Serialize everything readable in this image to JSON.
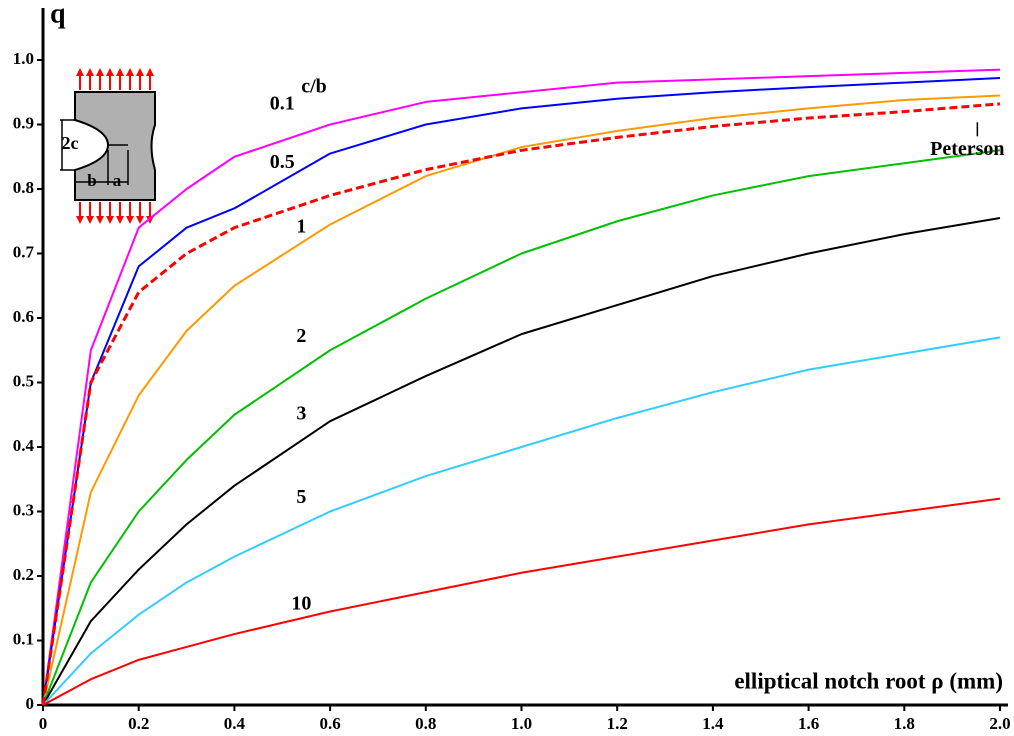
{
  "chart_data": {
    "type": "line",
    "y_label": "q",
    "x_label": "elliptical notch root ρ (mm)",
    "legend_title": "c/b",
    "inset_labels": [
      "2c",
      "b",
      "a"
    ],
    "x": [
      0,
      0.1,
      0.2,
      0.3,
      0.4,
      0.6,
      0.8,
      1.0,
      1.2,
      1.4,
      1.6,
      1.8,
      2.0
    ],
    "series": [
      {
        "name": "0.1",
        "color": "#ff00ff",
        "values": [
          0,
          0.55,
          0.74,
          0.8,
          0.85,
          0.9,
          0.935,
          0.95,
          0.965,
          0.97,
          0.975,
          0.98,
          0.985
        ]
      },
      {
        "name": "0.5",
        "color": "#0000ff",
        "values": [
          0,
          0.5,
          0.68,
          0.74,
          0.77,
          0.855,
          0.9,
          0.925,
          0.94,
          0.95,
          0.958,
          0.965,
          0.972
        ]
      },
      {
        "name": "1",
        "color": "#ff9900",
        "values": [
          0,
          0.33,
          0.48,
          0.58,
          0.65,
          0.745,
          0.82,
          0.865,
          0.89,
          0.91,
          0.925,
          0.938,
          0.945
        ]
      },
      {
        "name": "2",
        "color": "#00c000",
        "values": [
          0,
          0.19,
          0.3,
          0.38,
          0.45,
          0.55,
          0.63,
          0.7,
          0.75,
          0.79,
          0.82,
          0.84,
          0.86
        ]
      },
      {
        "name": "3",
        "color": "#000000",
        "values": [
          0,
          0.13,
          0.21,
          0.28,
          0.34,
          0.44,
          0.51,
          0.575,
          0.62,
          0.665,
          0.7,
          0.73,
          0.755
        ]
      },
      {
        "name": "5",
        "color": "#33ccff",
        "values": [
          0,
          0.08,
          0.14,
          0.19,
          0.23,
          0.3,
          0.355,
          0.4,
          0.445,
          0.485,
          0.52,
          0.545,
          0.57
        ]
      },
      {
        "name": "10",
        "color": "#ff0000",
        "values": [
          0,
          0.04,
          0.07,
          0.09,
          0.11,
          0.145,
          0.175,
          0.205,
          0.23,
          0.255,
          0.28,
          0.3,
          0.32
        ]
      },
      {
        "name": "Peterson",
        "color": "#ff0000",
        "dashed": true,
        "values": [
          0,
          0.5,
          0.64,
          0.7,
          0.74,
          0.79,
          0.83,
          0.86,
          0.88,
          0.897,
          0.91,
          0.92,
          0.932
        ]
      }
    ],
    "xlim": [
      0,
      2.0
    ],
    "ylim": [
      0,
      1.0
    ],
    "xticks": [
      0,
      0.2,
      0.4,
      0.6,
      0.8,
      {
        "value": 1,
        "label": "1.0"
      },
      1.2,
      1.4,
      1.6,
      1.8,
      {
        "value": 2,
        "label": "2.0"
      }
    ],
    "yticks": [
      0,
      0.1,
      0.2,
      0.3,
      0.4,
      0.5,
      0.6,
      0.7,
      0.8,
      0.9,
      {
        "value": 1,
        "label": "1.0"
      }
    ]
  }
}
